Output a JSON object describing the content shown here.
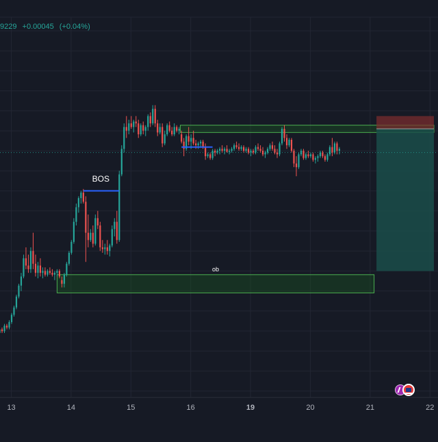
{
  "quote": {
    "price": "9229",
    "change": "+0.00045",
    "change_pct": "(+0.04%)",
    "color": "#26a69a"
  },
  "colors": {
    "background": "#161a25",
    "grid": "#222633",
    "up": "#26a69a",
    "down": "#ef5350",
    "bos_line": "#2962ff",
    "zone_fill": "#1b5e20",
    "zone_border": "#4caf50",
    "stop_zone": "#7f2d2d",
    "target_zone": "#1a4d4a",
    "axis_text": "#b2b5be"
  },
  "badges": [
    "lightning-icon",
    "us-flag-icon"
  ],
  "chart_data": {
    "type": "candlestick",
    "title": "",
    "xlabel": "",
    "ylabel": "",
    "x_ticks": [
      "13",
      "14",
      "15",
      "16",
      "19",
      "20",
      "21",
      "22"
    ],
    "x_tick_positions": [
      0.5,
      1.5,
      2.5,
      3.5,
      4.5,
      5.5,
      6.5,
      7.5
    ],
    "xlim": [
      0.22,
      7.52
    ],
    "ylim": [
      0.0,
      100.0
    ],
    "y_axis_note": "price scale not visible; relative units",
    "grid": true,
    "current_price": 70,
    "series": [
      {
        "values": [
          [
            0.22,
            20,
            21,
            19,
            20.5
          ],
          [
            0.26,
            20.5,
            22,
            20,
            21.5
          ],
          [
            0.3,
            21.5,
            22,
            20.5,
            21
          ],
          [
            0.34,
            21,
            23,
            20.5,
            22.5
          ],
          [
            0.38,
            22.5,
            23,
            21.5,
            22
          ],
          [
            0.42,
            22,
            24,
            21.5,
            23.5
          ],
          [
            0.46,
            23.5,
            26,
            23,
            25.5
          ],
          [
            0.5,
            25.5,
            28,
            25,
            27.5
          ],
          [
            0.54,
            27.5,
            31,
            27,
            30.5
          ],
          [
            0.58,
            30.5,
            34,
            30,
            33.5
          ],
          [
            0.62,
            33.5,
            37,
            32,
            36
          ],
          [
            0.66,
            36,
            42,
            35.5,
            41
          ],
          [
            0.7,
            41,
            44,
            38,
            39
          ],
          [
            0.74,
            39,
            42,
            37,
            38
          ],
          [
            0.78,
            38,
            44,
            37,
            43
          ],
          [
            0.82,
            43,
            48,
            38,
            39.5
          ],
          [
            0.86,
            39.5,
            42,
            36,
            37
          ],
          [
            0.9,
            37,
            40,
            35.5,
            39
          ],
          [
            0.94,
            39,
            41,
            36,
            37
          ],
          [
            0.98,
            37,
            38.5,
            35.5,
            37.5
          ],
          [
            1.02,
            37.5,
            38.5,
            36,
            36.5
          ],
          [
            1.06,
            36.5,
            38,
            36,
            37.5
          ],
          [
            1.1,
            37.5,
            38.5,
            36.5,
            37
          ],
          [
            1.14,
            37,
            38,
            36,
            36.5
          ],
          [
            1.18,
            36.5,
            37.5,
            35,
            37
          ],
          [
            1.22,
            37,
            38,
            36,
            37.5
          ],
          [
            1.26,
            37.5,
            38,
            35.5,
            36
          ],
          [
            1.3,
            35,
            36,
            33,
            34
          ],
          [
            1.34,
            34,
            37,
            33,
            36.5
          ],
          [
            1.38,
            36.5,
            40,
            36,
            39.5
          ],
          [
            1.42,
            39.5,
            43,
            39,
            42.5
          ],
          [
            1.46,
            42.5,
            46,
            42,
            45.5
          ],
          [
            1.5,
            45.5,
            52,
            45,
            51
          ],
          [
            1.54,
            51,
            56,
            50,
            55
          ],
          [
            1.58,
            55,
            58,
            53.5,
            57.5
          ],
          [
            1.62,
            57.5,
            59.5,
            56,
            59
          ],
          [
            1.66,
            59,
            60,
            56,
            56.5
          ],
          [
            1.7,
            56.5,
            58,
            40,
            48
          ],
          [
            1.74,
            48,
            53,
            44,
            46
          ],
          [
            1.78,
            46,
            49,
            45.5,
            48
          ],
          [
            1.82,
            48,
            50,
            44,
            45
          ],
          [
            1.86,
            45,
            53,
            44.5,
            52
          ],
          [
            1.9,
            52,
            54,
            49,
            50
          ],
          [
            1.94,
            50,
            51,
            43,
            44
          ],
          [
            1.98,
            44,
            46,
            42.5,
            43.5
          ],
          [
            2.02,
            43.5,
            45,
            42,
            44
          ],
          [
            2.06,
            44,
            46,
            42,
            43
          ],
          [
            2.1,
            43,
            45,
            41.5,
            44.5
          ],
          [
            2.14,
            44.5,
            50,
            44,
            49
          ],
          [
            2.18,
            49,
            52,
            47,
            51
          ],
          [
            2.22,
            51,
            54,
            45,
            46
          ],
          [
            2.26,
            46,
            65,
            45.5,
            64
          ],
          [
            2.3,
            64,
            72,
            63.5,
            71
          ],
          [
            2.34,
            71,
            78,
            70,
            77
          ],
          [
            2.38,
            77,
            80,
            74,
            76
          ],
          [
            2.42,
            76,
            79,
            75,
            78
          ],
          [
            2.46,
            78,
            80,
            76.5,
            77
          ],
          [
            2.5,
            77,
            79,
            75.5,
            78.5
          ],
          [
            2.54,
            78.5,
            80,
            77,
            78
          ],
          [
            2.58,
            78,
            79,
            74,
            75
          ],
          [
            2.62,
            75,
            78,
            74.5,
            77.5
          ],
          [
            2.66,
            77.5,
            78.5,
            75,
            76
          ],
          [
            2.7,
            76,
            77.5,
            74.5,
            77
          ],
          [
            2.74,
            77,
            80.5,
            76,
            80
          ],
          [
            2.78,
            80,
            81,
            77,
            78
          ],
          [
            2.82,
            78,
            83,
            77.5,
            82
          ],
          [
            2.86,
            82,
            83,
            77,
            78
          ],
          [
            2.9,
            78,
            79,
            74.5,
            75.5
          ],
          [
            2.94,
            75.5,
            78,
            75,
            77
          ],
          [
            2.98,
            77,
            78,
            71.5,
            72.5
          ],
          [
            3.02,
            72.5,
            76,
            72,
            75
          ],
          [
            3.06,
            75,
            78,
            74.5,
            77.5
          ],
          [
            3.1,
            77.5,
            78.5,
            75.5,
            76
          ],
          [
            3.14,
            76,
            77,
            74.5,
            75
          ],
          [
            3.18,
            75,
            78,
            74.5,
            77
          ],
          [
            3.22,
            77,
            77.5,
            75.5,
            76
          ],
          [
            3.26,
            76,
            77,
            75,
            76.5
          ],
          [
            3.3,
            75,
            76,
            72.5,
            73
          ],
          [
            3.34,
            73,
            74,
            69,
            71
          ],
          [
            3.38,
            71,
            75,
            70.5,
            74.5
          ],
          [
            3.42,
            74.5,
            77,
            72,
            73
          ],
          [
            3.46,
            73,
            75,
            71,
            74
          ],
          [
            3.5,
            74,
            76,
            72,
            72.5
          ],
          [
            3.54,
            72.5,
            73.5,
            71,
            72
          ],
          [
            3.58,
            72,
            73,
            71,
            72.5
          ],
          [
            3.62,
            72.5,
            73.5,
            71.5,
            73
          ],
          [
            3.66,
            73,
            73.5,
            71,
            71.5
          ],
          [
            3.7,
            71.5,
            72.5,
            68,
            69
          ],
          [
            3.74,
            69,
            70,
            68.5,
            69.5
          ],
          [
            3.78,
            69.5,
            70,
            68,
            68.5
          ],
          [
            3.82,
            68.5,
            71,
            68,
            70.5
          ],
          [
            3.86,
            70.5,
            71,
            69,
            70
          ],
          [
            3.9,
            70,
            71,
            69.5,
            70.5
          ],
          [
            3.94,
            70.5,
            71.5,
            69.5,
            71
          ],
          [
            3.98,
            71,
            72,
            70,
            70.5
          ],
          [
            4.02,
            70.5,
            71.5,
            69.5,
            71
          ],
          [
            4.06,
            71,
            72,
            70,
            70.2
          ],
          [
            4.1,
            70.2,
            71,
            69.5,
            70.5
          ],
          [
            4.14,
            70.5,
            71.5,
            70,
            71
          ],
          [
            4.18,
            71,
            72.5,
            70.5,
            72
          ],
          [
            4.22,
            72,
            73,
            71,
            71.5
          ],
          [
            4.26,
            71.5,
            72.5,
            70.5,
            71
          ],
          [
            4.3,
            71,
            72,
            70.5,
            71.5
          ],
          [
            4.34,
            71.5,
            72,
            70,
            70.5
          ],
          [
            4.38,
            70.5,
            71.5,
            70,
            71
          ],
          [
            4.42,
            71,
            71.5,
            69.5,
            70
          ],
          [
            4.46,
            70,
            71,
            69,
            70.5
          ],
          [
            4.5,
            70.5,
            71,
            69.5,
            70
          ],
          [
            4.54,
            70,
            72,
            69.5,
            71.5
          ],
          [
            4.58,
            71.5,
            72.5,
            70.5,
            71
          ],
          [
            4.62,
            71,
            72,
            70,
            70.5
          ],
          [
            4.66,
            70.5,
            71.5,
            69,
            69.5
          ],
          [
            4.7,
            69.5,
            70.5,
            68.5,
            70
          ],
          [
            4.74,
            70,
            71.5,
            69.5,
            71
          ],
          [
            4.78,
            71,
            72.5,
            70.5,
            72
          ],
          [
            4.82,
            72,
            73,
            70.5,
            71
          ],
          [
            4.86,
            71,
            72,
            69.5,
            70
          ],
          [
            4.9,
            70,
            71,
            68.5,
            69.5
          ],
          [
            4.94,
            69.5,
            73,
            69,
            72.5
          ],
          [
            4.98,
            72.5,
            77,
            72,
            76.5
          ],
          [
            5.02,
            76.5,
            77.5,
            73,
            74
          ],
          [
            5.06,
            74,
            75,
            71,
            72
          ],
          [
            5.1,
            72,
            74,
            71.5,
            73.5
          ],
          [
            5.14,
            73.5,
            74,
            70,
            70.5
          ],
          [
            5.18,
            70.5,
            71,
            66,
            67
          ],
          [
            5.22,
            67,
            69,
            63.5,
            66
          ],
          [
            5.26,
            66,
            70,
            65.5,
            69.5
          ],
          [
            5.3,
            69.5,
            71,
            69,
            70.5
          ],
          [
            5.34,
            70.5,
            71,
            68,
            68.5
          ],
          [
            5.38,
            68.5,
            70,
            68,
            69.5
          ],
          [
            5.42,
            69.5,
            70.5,
            68.5,
            69
          ],
          [
            5.46,
            69,
            70,
            68.5,
            69.5
          ],
          [
            5.5,
            69.5,
            70,
            67.5,
            68
          ],
          [
            5.54,
            68,
            69,
            67,
            68.5
          ],
          [
            5.58,
            68.5,
            69.5,
            67.5,
            69
          ],
          [
            5.62,
            69,
            70.5,
            68.5,
            70
          ],
          [
            5.66,
            70,
            70.5,
            68.5,
            69
          ],
          [
            5.7,
            69,
            69.5,
            67.5,
            68
          ],
          [
            5.74,
            68,
            70,
            67.5,
            69.5
          ],
          [
            5.78,
            69.5,
            72,
            69,
            71.5
          ],
          [
            5.82,
            71.5,
            74,
            69,
            70
          ],
          [
            5.86,
            70,
            73,
            69.5,
            72.5
          ],
          [
            5.9,
            72.5,
            73,
            69.5,
            70.5
          ],
          [
            5.94,
            70.5,
            71.5,
            69.5,
            71
          ]
        ]
      }
    ],
    "annotations": [
      {
        "type": "label",
        "text": "BOS",
        "x": 1.7,
        "y": 63.5,
        "color": "#ffffff"
      },
      {
        "type": "level",
        "name": "bos-line",
        "x0": 1.66,
        "x1": 2.26,
        "y": 59.5,
        "color": "#2962ff"
      },
      {
        "type": "level",
        "name": "bos-line-2",
        "x0": 3.3,
        "x1": 3.82,
        "y": 71.5,
        "color": "#2962ff"
      },
      {
        "type": "zone",
        "name": "ob-zone",
        "text": "ob",
        "x0": 1.22,
        "x1": 6.52,
        "y0": 31.5,
        "y1": 36.5
      },
      {
        "type": "zone",
        "name": "upper-zone",
        "x0": 3.28,
        "x1": 7.52,
        "y0": 75.5,
        "y1": 77.5
      },
      {
        "type": "position",
        "name": "short-position",
        "x0": 6.56,
        "x1": 7.52,
        "entry": 76.5,
        "stop": 80.0,
        "target": 37.5
      }
    ]
  }
}
